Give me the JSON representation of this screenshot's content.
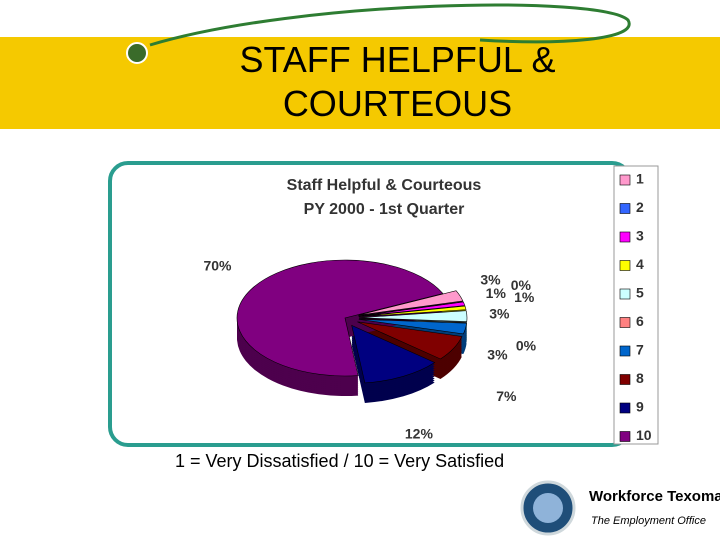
{
  "slide": {
    "title": "STAFF HELPFUL & COURTEOUS",
    "note": "1 = Very Dissatisfied / 10 = Very Satisfied",
    "brand": "Workforce Texoma",
    "tagline": "The Employment Office"
  },
  "chart_data": {
    "type": "pie",
    "title": "Staff Helpful & Courteous",
    "subtitle": "PY 2000 - 1st Quarter",
    "categories": [
      "1",
      "2",
      "3",
      "4",
      "5",
      "6",
      "7",
      "8",
      "9",
      "10"
    ],
    "values": [
      3,
      0,
      1,
      1,
      3,
      0,
      3,
      7,
      12,
      70
    ],
    "value_labels": [
      "3%",
      "0%",
      "1%",
      "1%",
      "3%",
      "0%",
      "3%",
      "7%",
      "12%",
      "70%"
    ],
    "colors": [
      "#ff99cc",
      "#3366ff",
      "#ff00ff",
      "#ffff00",
      "#ccffff",
      "#ff8080",
      "#0066cc",
      "#800000",
      "#000080",
      "#800080"
    ],
    "legend": "right"
  }
}
